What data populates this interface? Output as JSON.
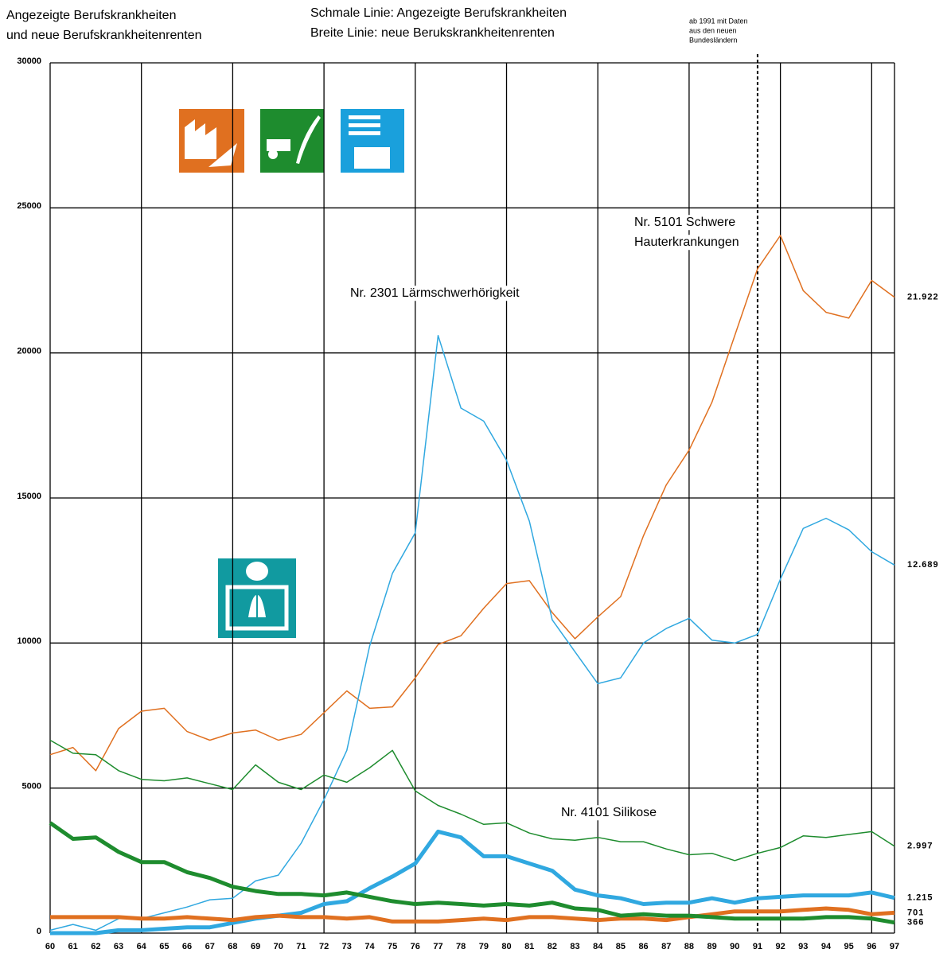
{
  "chart_data": {
    "type": "line",
    "title": [
      "Angezeigte Berufskrankheiten",
      "und neue Berufskrankheitenrenten"
    ],
    "subtitle": [
      "Schmale Linie: Angezeigte Berufskrankheiten",
      "Breite Linie:  neue Berukskrankheitenrenten"
    ],
    "divider": "91",
    "divider_note": [
      "ab 1991 mit Daten",
      "aus den neuen",
      "Bundesländern"
    ],
    "annotations": [
      [
        "Nr. 5101 Schwere",
        "Hauterkrankungen"
      ],
      [
        "Nr. 2301 Lärmschwerhörigkeit"
      ],
      [
        "Nr. 4101 Silikose"
      ]
    ],
    "categories": [
      "60",
      "61",
      "62",
      "63",
      "64",
      "65",
      "66",
      "67",
      "68",
      "69",
      "70",
      "71",
      "72",
      "73",
      "74",
      "75",
      "76",
      "77",
      "78",
      "79",
      "80",
      "81",
      "82",
      "83",
      "84",
      "85",
      "86",
      "87",
      "88",
      "89",
      "90",
      "91",
      "92",
      "93",
      "94",
      "95",
      "96",
      "97"
    ],
    "ylim": [
      0,
      30000
    ],
    "yticks": [
      0,
      5000,
      10000,
      15000,
      20000,
      25000,
      30000
    ],
    "grid": true,
    "series": [
      {
        "color": "#e07020",
        "line_width": 1.5,
        "end_label": "21.922",
        "values": [
          6150,
          6400,
          5600,
          7050,
          7650,
          7750,
          6950,
          6650,
          6900,
          7000,
          6650,
          6850,
          7600,
          8350,
          7750,
          7800,
          8800,
          9950,
          10250,
          11200,
          12050,
          12150,
          11050,
          10150,
          10900,
          11600,
          13700,
          15450,
          16650,
          18300,
          20600,
          22900,
          24050,
          22150,
          21400,
          21200,
          22500,
          21922
        ]
      },
      {
        "color": "#30a8e0",
        "line_width": 1.5,
        "end_label": "12.689",
        "values": [
          100,
          300,
          100,
          500,
          500,
          700,
          900,
          1150,
          1200,
          1800,
          2000,
          3100,
          4600,
          6300,
          9900,
          12400,
          13800,
          20600,
          18100,
          17650,
          16300,
          14200,
          10800,
          9700,
          8600,
          8800,
          10000,
          10500,
          10850,
          10100,
          10000,
          10300,
          12200,
          13950,
          14300,
          13900,
          13150,
          12689
        ]
      },
      {
        "color": "#1e8c2e",
        "line_width": 1.5,
        "end_label": "2.997",
        "values": [
          6650,
          6200,
          6150,
          5600,
          5300,
          5250,
          5350,
          5150,
          4950,
          5800,
          5200,
          4950,
          5450,
          5200,
          5700,
          6300,
          4900,
          4400,
          4100,
          3750,
          3800,
          3450,
          3250,
          3200,
          3300,
          3150,
          3150,
          2900,
          2700,
          2750,
          2500,
          2750,
          2950,
          3350,
          3300,
          3400,
          3500,
          2997
        ]
      },
      {
        "color": "#30a8e0",
        "line_width": 5,
        "end_label": "1.215",
        "values": [
          0,
          0,
          0,
          100,
          100,
          150,
          200,
          200,
          350,
          500,
          600,
          700,
          1000,
          1100,
          1550,
          1950,
          2400,
          3500,
          3300,
          2650,
          2650,
          2400,
          2150,
          1500,
          1300,
          1200,
          1000,
          1050,
          1050,
          1200,
          1050,
          1200,
          1250,
          1300,
          1300,
          1300,
          1400,
          1215
        ]
      },
      {
        "color": "#e07020",
        "line_width": 5,
        "end_label": "701",
        "values": [
          550,
          550,
          550,
          550,
          500,
          500,
          550,
          500,
          450,
          550,
          600,
          550,
          550,
          500,
          550,
          400,
          400,
          400,
          450,
          500,
          450,
          550,
          550,
          500,
          450,
          500,
          500,
          450,
          550,
          650,
          750,
          750,
          750,
          800,
          850,
          800,
          650,
          701
        ]
      },
      {
        "color": "#1e8c2e",
        "line_width": 5,
        "end_label": "366",
        "values": [
          3800,
          3250,
          3300,
          2800,
          2450,
          2450,
          2100,
          1900,
          1600,
          1450,
          1350,
          1350,
          1300,
          1400,
          1250,
          1100,
          1000,
          1050,
          1000,
          950,
          1000,
          950,
          1050,
          850,
          800,
          600,
          650,
          600,
          600,
          550,
          500,
          500,
          500,
          500,
          550,
          550,
          500,
          366
        ]
      }
    ]
  }
}
